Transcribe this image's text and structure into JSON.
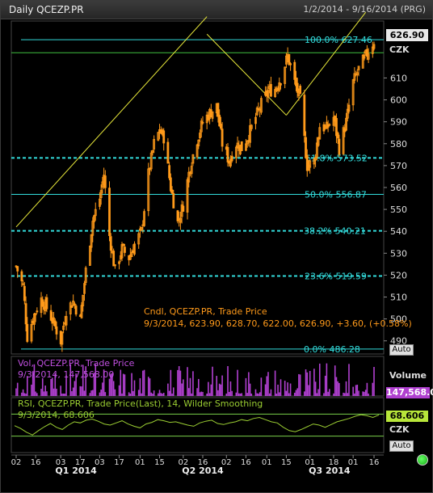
{
  "window": {
    "title": "Daily QCEZP.PR",
    "date_range": "1/2/2014 - 9/16/2014 (PRG)"
  },
  "price_panel": {
    "currency_label": "CZK",
    "last_price_label": "626.90",
    "legend_title": "Cndl, QCEZP.PR, Trade Price",
    "legend_values": "9/3/2014, 623.90, 628.70, 622.00, 626.90, +3.60, (+0.58%)",
    "auto_label": "Auto"
  },
  "volume_panel": {
    "legend_title": "Vol, QCEZP.PR, Trade Price",
    "legend_values": "9/3/2014, 147,568.00",
    "axis_title": "Volume",
    "last_label": "147,568.0"
  },
  "rsi_panel": {
    "legend_title": "RSI, QCEZP.PR, Trade Price(Last),  14, Wilder Smoothing",
    "legend_values": "9/3/2014, 68.606",
    "last_label": "68.606",
    "currency_label": "CZK",
    "auto_label": "Auto"
  },
  "colors": {
    "candle": "#ff9a1a",
    "fib": "#33dddd",
    "trend": "#e8e83a",
    "volume": "#b040d0",
    "rsi": "#9acd32",
    "rsi_band": "#7ad04a"
  },
  "chart_data": [
    {
      "type": "candlestick",
      "series": "QCEZP.PR Trade Price",
      "y_ticks": [
        490,
        500,
        510,
        520,
        530,
        540,
        550,
        560,
        570,
        580,
        590,
        600,
        610
      ],
      "ylim": [
        484,
        636
      ],
      "fibonacci": [
        {
          "label": "100.0%",
          "value": 627.46
        },
        {
          "label": "61.8%",
          "value": 573.52
        },
        {
          "label": "50.0%",
          "value": 556.87
        },
        {
          "label": "38.2%",
          "value": 540.21
        },
        {
          "label": "23.6%",
          "value": 519.59
        },
        {
          "label": "0.0%",
          "value": 486.28
        }
      ],
      "fib_value_labels": [
        "627.46",
        "573.52",
        "556.87",
        "540.21",
        "519.59",
        "486.28"
      ],
      "horizontal_line": 621.5,
      "trendlines": [
        [
          [
            "2014-01-02",
            542
          ],
          [
            "2014-05-19",
            638
          ]
        ],
        [
          [
            "2014-05-19",
            630
          ],
          [
            "2014-07-15",
            593
          ]
        ],
        [
          [
            "2014-07-15",
            593
          ],
          [
            "2014-09-10",
            640
          ]
        ]
      ],
      "close_path": [
        [
          "2014-01-02",
          524
        ],
        [
          "2014-01-07",
          515
        ],
        [
          "2014-01-10",
          492
        ],
        [
          "2014-01-15",
          502
        ],
        [
          "2014-01-20",
          509
        ],
        [
          "2014-01-24",
          505
        ],
        [
          "2014-01-29",
          498
        ],
        [
          "2014-02-03",
          490
        ],
        [
          "2014-02-07",
          504
        ],
        [
          "2014-02-12",
          508
        ],
        [
          "2014-02-17",
          500
        ],
        [
          "2014-02-21",
          522
        ],
        [
          "2014-02-26",
          545
        ],
        [
          "2014-03-03",
          555
        ],
        [
          "2014-03-06",
          566
        ],
        [
          "2014-03-10",
          538
        ],
        [
          "2014-03-14",
          522
        ],
        [
          "2014-03-19",
          532
        ],
        [
          "2014-03-24",
          528
        ],
        [
          "2014-03-28",
          534
        ],
        [
          "2014-04-02",
          540
        ],
        [
          "2014-04-07",
          566
        ],
        [
          "2014-04-11",
          580
        ],
        [
          "2014-04-15",
          586
        ],
        [
          "2014-04-18",
          583
        ],
        [
          "2014-04-23",
          560
        ],
        [
          "2014-04-28",
          544
        ],
        [
          "2014-05-02",
          552
        ],
        [
          "2014-05-07",
          570
        ],
        [
          "2014-05-12",
          582
        ],
        [
          "2014-05-16",
          590
        ],
        [
          "2014-05-21",
          594
        ],
        [
          "2014-05-26",
          597
        ],
        [
          "2014-05-30",
          580
        ],
        [
          "2014-06-04",
          572
        ],
        [
          "2014-06-09",
          580
        ],
        [
          "2014-06-13",
          578
        ],
        [
          "2014-06-18",
          584
        ],
        [
          "2014-06-23",
          592
        ],
        [
          "2014-06-27",
          598
        ],
        [
          "2014-07-02",
          604
        ],
        [
          "2014-07-07",
          605
        ],
        [
          "2014-07-11",
          610
        ],
        [
          "2014-07-16",
          620
        ],
        [
          "2014-07-21",
          608
        ],
        [
          "2014-07-25",
          600
        ],
        [
          "2014-07-30",
          570
        ],
        [
          "2014-08-04",
          572
        ],
        [
          "2014-08-08",
          588
        ],
        [
          "2014-08-13",
          587
        ],
        [
          "2014-08-18",
          592
        ],
        [
          "2014-08-22",
          578
        ],
        [
          "2014-08-27",
          590
        ],
        [
          "2014-09-01",
          608
        ],
        [
          "2014-09-05",
          614
        ],
        [
          "2014-09-10",
          620
        ],
        [
          "2014-09-16",
          626.9
        ]
      ],
      "last": {
        "date": "2014-09-03",
        "open": 623.9,
        "high": 628.7,
        "low": 622.0,
        "close": 626.9,
        "change": 3.6,
        "change_pct": 0.58
      }
    },
    {
      "type": "bar",
      "series": "Volume",
      "last": {
        "date": "2014-09-03",
        "value": 147568.0
      }
    },
    {
      "type": "line",
      "series": "RSI 14 Wilder Smoothing",
      "ylim": [
        0,
        100
      ],
      "bands": [
        30,
        70
      ],
      "values": [
        49,
        44,
        37,
        32,
        40,
        47,
        53,
        46,
        42,
        50,
        56,
        54,
        59,
        61,
        57,
        52,
        50,
        54,
        58,
        52,
        48,
        45,
        52,
        55,
        60,
        58,
        55,
        56,
        53,
        50,
        48,
        54,
        57,
        59,
        53,
        51,
        54,
        56,
        60,
        58,
        62,
        64,
        60,
        56,
        54,
        46,
        40,
        38,
        42,
        47,
        52,
        50,
        46,
        51,
        56,
        59,
        62,
        66,
        69,
        67,
        64,
        68.6
      ],
      "last": {
        "date": "2014-09-03",
        "value": 68.606
      }
    }
  ],
  "x_axis": {
    "ticks": [
      {
        "date": "2014-01-02",
        "label": "02"
      },
      {
        "date": "2014-01-16",
        "label": "16"
      },
      {
        "date": "2014-02-03",
        "label": "03"
      },
      {
        "date": "2014-02-17",
        "label": "17"
      },
      {
        "date": "2014-03-03",
        "label": "03"
      },
      {
        "date": "2014-03-17",
        "label": "17"
      },
      {
        "date": "2014-04-01",
        "label": "01"
      },
      {
        "date": "2014-04-15",
        "label": "15"
      },
      {
        "date": "2014-05-02",
        "label": "02"
      },
      {
        "date": "2014-05-16",
        "label": "16"
      },
      {
        "date": "2014-06-02",
        "label": "02"
      },
      {
        "date": "2014-06-16",
        "label": "16"
      },
      {
        "date": "2014-07-01",
        "label": "01"
      },
      {
        "date": "2014-07-15",
        "label": "15"
      },
      {
        "date": "2014-08-01",
        "label": "01"
      },
      {
        "date": "2014-08-18",
        "label": "18"
      },
      {
        "date": "2014-09-01",
        "label": "01"
      },
      {
        "date": "2014-09-16",
        "label": "16"
      }
    ],
    "quarters": [
      {
        "date": "2014-02-14",
        "label": "Q1 2014"
      },
      {
        "date": "2014-05-16",
        "label": "Q2 2014"
      },
      {
        "date": "2014-08-15",
        "label": "Q3 2014"
      }
    ]
  }
}
